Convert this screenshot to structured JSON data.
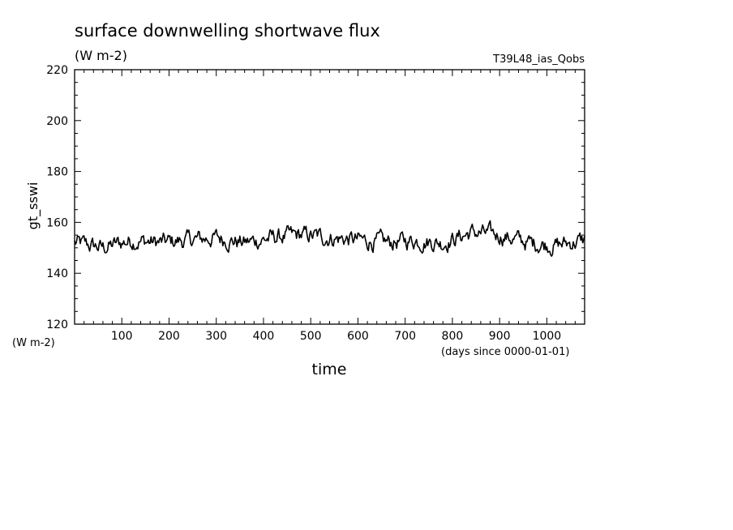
{
  "chart_data": {
    "type": "line",
    "title": "surface downwelling shortwave flux",
    "units": "(W m-2)",
    "experiment": "T39L48_ias_Qobs",
    "xlabel": "time",
    "xunits": "(days since 0000-01-01)",
    "ylabel": "gt_sswi",
    "yunits": "(W m-2)",
    "xlim": [
      0,
      1080
    ],
    "ylim": [
      120,
      220
    ],
    "xticks": [
      100,
      200,
      300,
      400,
      500,
      600,
      700,
      800,
      900,
      1000
    ],
    "yticks": [
      120,
      140,
      160,
      180,
      200,
      220
    ],
    "grid": false,
    "series": [
      {
        "x": [
          0,
          60,
          120,
          180,
          240,
          300,
          360,
          420,
          480,
          540,
          600,
          660,
          720,
          780,
          840,
          900,
          960,
          1020,
          1080
        ],
        "values": [
          152,
          150,
          153,
          152,
          153,
          154,
          152,
          154,
          155,
          154,
          153,
          152,
          153,
          152,
          156,
          155,
          152,
          151,
          153
        ]
      }
    ]
  }
}
